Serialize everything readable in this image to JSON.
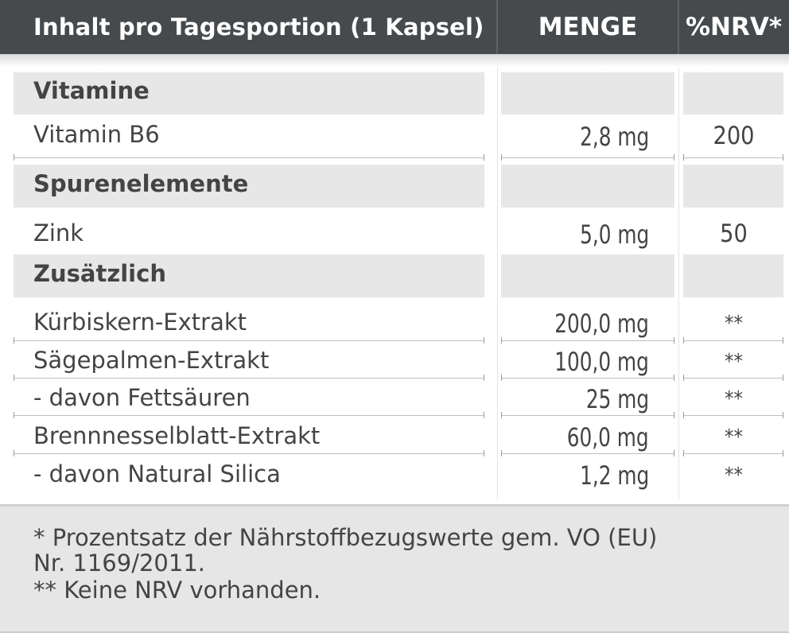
{
  "header": {
    "col1": "Inhalt pro Tagesportion (1 Kapsel)",
    "col2": "MENGE",
    "col3": "%NRV*"
  },
  "sections": [
    {
      "title": "Vitamine",
      "rows": [
        {
          "name": "Vitamin B6",
          "amount": "2,8 mg",
          "nrv": "200"
        }
      ]
    },
    {
      "title": "Spurenelemente",
      "rows": [
        {
          "name": "Zink",
          "amount": "5,0 mg",
          "nrv": "50"
        }
      ]
    },
    {
      "title": "Zusätzlich",
      "rows": [
        {
          "name": "Kürbiskern-Extrakt",
          "amount": "200,0 mg",
          "nrv": "**"
        },
        {
          "name": "Sägepalmen-Extrakt",
          "amount": "100,0 mg",
          "nrv": "**"
        },
        {
          "name": "- davon Fettsäuren",
          "amount": "25 mg",
          "nrv": "**"
        },
        {
          "name": "Brennnesselblatt-Extrakt",
          "amount": "60,0 mg",
          "nrv": "**"
        },
        {
          "name": "- davon Natural Silica",
          "amount": "1,2 mg",
          "nrv": "**"
        }
      ]
    }
  ],
  "footer": {
    "line1": "* Prozentsatz der Nährstoffbezugswerte gem. VO (EU)",
    "line2": "Nr. 1169/2011.",
    "line3": "** Keine NRV vorhanden."
  }
}
